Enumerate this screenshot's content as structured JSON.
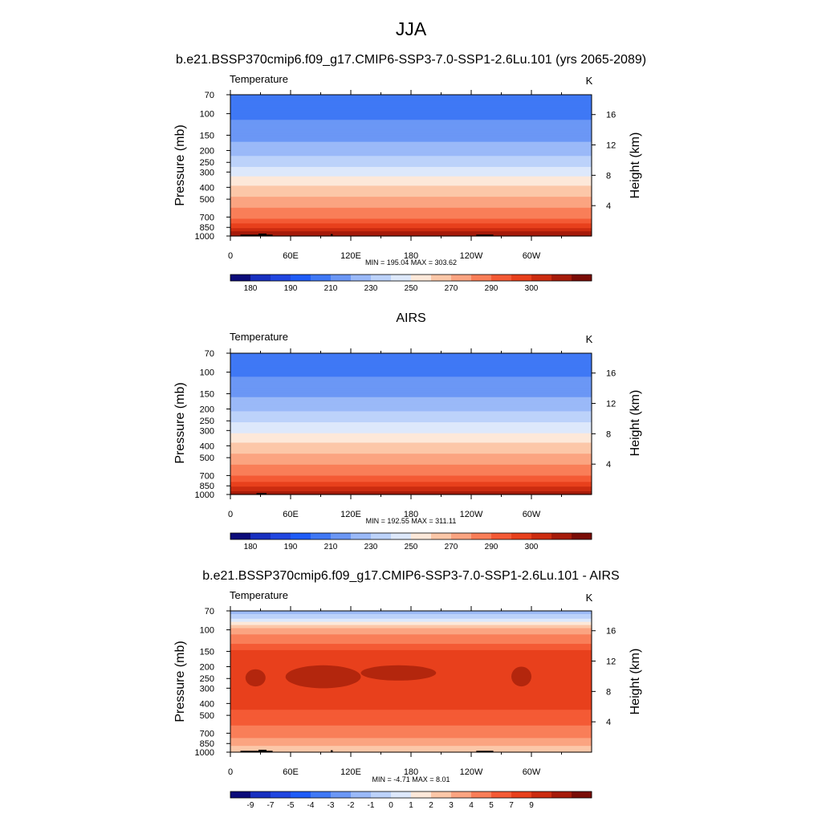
{
  "main_title": "JJA",
  "colors": {
    "abs_levels": [
      "#0c0c7a",
      "#1830c0",
      "#2146e0",
      "#1f5cf7",
      "#3f78f5",
      "#6b97f5",
      "#9ab9f8",
      "#bcd2fa",
      "#dde8fb",
      "#fde8d9",
      "#fcc7a8",
      "#fba481",
      "#f97e58",
      "#f45a35",
      "#e8401c",
      "#cc2c10",
      "#a61b0a",
      "#7a0c06"
    ],
    "diff_levels": [
      "#0c0c7a",
      "#1830c0",
      "#2146e0",
      "#1f5cf7",
      "#3f78f5",
      "#6b97f5",
      "#9ab9f8",
      "#bcd2fa",
      "#dde8fb",
      "#fde8d9",
      "#fcc7a8",
      "#fba481",
      "#f97e58",
      "#f45a35",
      "#e8401c",
      "#cc2c10",
      "#a61b0a",
      "#7a0c06"
    ],
    "topography": "#000000"
  },
  "chart_data": [
    {
      "type": "heatmap",
      "title": "b.e21.BSSP370cmip6.f09_g17.CMIP6-SSP3-7.0-SSP1-2.6Lu.101 (yrs 2065-2089)",
      "left_label": "Temperature",
      "right_label": "K",
      "xlabel": "",
      "ylabel": "Pressure (mb)",
      "y2label": "Height (km)",
      "x_ticks": [
        "0",
        "60E",
        "120E",
        "180",
        "120W",
        "60W"
      ],
      "x_range_deg": [
        0,
        360
      ],
      "y_ticks": [
        "70",
        "100",
        "150",
        "200",
        "250",
        "300",
        "400",
        "500",
        "700",
        "850",
        "1000"
      ],
      "y_range_mb": [
        70,
        1000
      ],
      "y2_ticks": [
        "4",
        "8",
        "12",
        "16"
      ],
      "stats": "MIN = 195.04  MAX = 303.62",
      "colorbar_labels": [
        "180",
        "190",
        "210",
        "230",
        "250",
        "270",
        "290",
        "300"
      ],
      "profile_K": [
        [
          70,
          197
        ],
        [
          100,
          198
        ],
        [
          150,
          206
        ],
        [
          200,
          216
        ],
        [
          250,
          226
        ],
        [
          300,
          235
        ],
        [
          400,
          251
        ],
        [
          500,
          263
        ],
        [
          700,
          279
        ],
        [
          850,
          289
        ],
        [
          1000,
          300
        ]
      ],
      "terrain": [
        [
          10,
          30,
          975
        ],
        [
          28,
          36,
          955
        ],
        [
          35,
          42,
          975
        ],
        [
          100,
          102,
          965
        ],
        [
          245,
          262,
          975
        ]
      ]
    },
    {
      "type": "heatmap",
      "title": "AIRS",
      "left_label": "Temperature",
      "right_label": "K",
      "xlabel": "",
      "ylabel": "Pressure (mb)",
      "y2label": "Height (km)",
      "x_ticks": [
        "0",
        "60E",
        "120E",
        "180",
        "120W",
        "60W"
      ],
      "x_range_deg": [
        0,
        360
      ],
      "y_ticks": [
        "70",
        "100",
        "150",
        "200",
        "250",
        "300",
        "400",
        "500",
        "700",
        "850",
        "1000"
      ],
      "y_range_mb": [
        70,
        1000
      ],
      "y2_ticks": [
        "4",
        "8",
        "12",
        "16"
      ],
      "stats": "MIN = 192.55  MAX = 311.11",
      "colorbar_labels": [
        "180",
        "190",
        "210",
        "230",
        "250",
        "270",
        "290",
        "300"
      ],
      "profile_K": [
        [
          70,
          196
        ],
        [
          100,
          198
        ],
        [
          150,
          208
        ],
        [
          200,
          218
        ],
        [
          250,
          228
        ],
        [
          300,
          238
        ],
        [
          400,
          253
        ],
        [
          500,
          264
        ],
        [
          700,
          280
        ],
        [
          850,
          289
        ],
        [
          1000,
          298
        ]
      ],
      "terrain": [
        [
          26,
          36,
          975
        ]
      ]
    },
    {
      "type": "heatmap",
      "title": "b.e21.BSSP370cmip6.f09_g17.CMIP6-SSP3-7.0-SSP1-2.6Lu.101 - AIRS",
      "left_label": "Temperature",
      "right_label": "K",
      "xlabel": "",
      "ylabel": "Pressure (mb)",
      "y2label": "Height (km)",
      "x_ticks": [
        "0",
        "60E",
        "120E",
        "180",
        "120W",
        "60W"
      ],
      "x_range_deg": [
        0,
        360
      ],
      "y_ticks": [
        "70",
        "100",
        "150",
        "200",
        "250",
        "300",
        "400",
        "500",
        "700",
        "850",
        "1000"
      ],
      "y_range_mb": [
        70,
        1000
      ],
      "y2_ticks": [
        "4",
        "8",
        "12",
        "16"
      ],
      "stats": "MIN =  -4.71  MAX =   8.01",
      "colorbar_labels": [
        "-9",
        "-7",
        "-5",
        "-4",
        "-3",
        "-2",
        "-1",
        "0",
        "1",
        "2",
        "3",
        "4",
        "5",
        "7",
        "9"
      ],
      "profile_diff_K": [
        [
          70,
          -3
        ],
        [
          80,
          -1
        ],
        [
          90,
          1
        ],
        [
          100,
          2.5
        ],
        [
          130,
          4
        ],
        [
          150,
          5.2
        ],
        [
          200,
          6.4
        ],
        [
          300,
          6
        ],
        [
          400,
          5.5
        ],
        [
          500,
          4.6
        ],
        [
          700,
          3.5
        ],
        [
          850,
          2.5
        ],
        [
          1000,
          1
        ]
      ],
      "warm_patches": [
        [
          15,
          35,
          210,
          290
        ],
        [
          55,
          130,
          195,
          300
        ],
        [
          130,
          205,
          195,
          260
        ],
        [
          280,
          300,
          200,
          290
        ]
      ],
      "terrain": [
        [
          10,
          30,
          975
        ],
        [
          28,
          36,
          955
        ],
        [
          35,
          42,
          975
        ],
        [
          100,
          102,
          965
        ],
        [
          245,
          262,
          975
        ]
      ]
    }
  ]
}
